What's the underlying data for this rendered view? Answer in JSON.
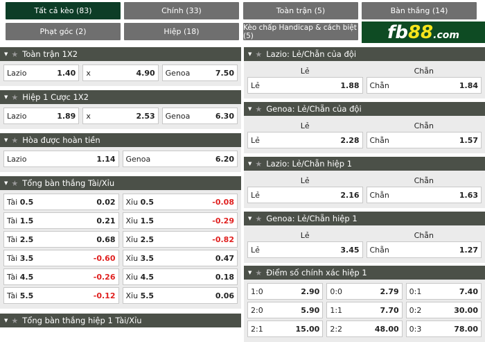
{
  "tabs": [
    {
      "label": "Tất cả kèo (83)",
      "active": true
    },
    {
      "label": "Chính (33)"
    },
    {
      "label": "Toàn trận (5)"
    },
    {
      "label": "Bàn thắng (14)"
    },
    {
      "label": "Phạt góc (2)"
    },
    {
      "label": "Hiệp (18)"
    },
    {
      "label": "Kèo chấp Handicap & cách biệt (5)"
    }
  ],
  "logo": {
    "text": "fb88.com",
    "fb": "fb",
    "num": "88",
    "dom": ".com",
    "brand_color": "#0e4b23"
  },
  "left": [
    {
      "title": "Toàn trận 1X2",
      "rows": [
        [
          {
            "l": "Lazio",
            "v": "1.40"
          },
          {
            "l": "x",
            "v": "4.90"
          },
          {
            "l": "Genoa",
            "v": "7.50"
          }
        ]
      ]
    },
    {
      "title": "Hiệp 1 Cược 1X2",
      "rows": [
        [
          {
            "l": "Lazio",
            "v": "1.89"
          },
          {
            "l": "x",
            "v": "2.53"
          },
          {
            "l": "Genoa",
            "v": "6.30"
          }
        ]
      ]
    },
    {
      "title": "Hòa được hoàn tiền",
      "rows": [
        [
          {
            "l": "Lazio",
            "v": "1.14"
          },
          {
            "l": "Genoa",
            "v": "6.20"
          }
        ]
      ]
    },
    {
      "title": "Tổng bàn thắng Tài/Xỉu",
      "rows": [
        [
          {
            "l": "Tài",
            "b": "0.5",
            "v": "0.02"
          },
          {
            "l": "Xỉu",
            "b": "0.5",
            "v": "-0.08"
          }
        ],
        [
          {
            "l": "Tài",
            "b": "1.5",
            "v": "0.21"
          },
          {
            "l": "Xỉu",
            "b": "1.5",
            "v": "-0.29"
          }
        ],
        [
          {
            "l": "Tài",
            "b": "2.5",
            "v": "0.68"
          },
          {
            "l": "Xỉu",
            "b": "2.5",
            "v": "-0.82"
          }
        ],
        [
          {
            "l": "Tài",
            "b": "3.5",
            "v": "-0.60"
          },
          {
            "l": "Xỉu",
            "b": "3.5",
            "v": "0.47"
          }
        ],
        [
          {
            "l": "Tài",
            "b": "4.5",
            "v": "-0.26"
          },
          {
            "l": "Xỉu",
            "b": "4.5",
            "v": "0.18"
          }
        ],
        [
          {
            "l": "Tài",
            "b": "5.5",
            "v": "-0.12"
          },
          {
            "l": "Xỉu",
            "b": "5.5",
            "v": "0.06"
          }
        ]
      ]
    },
    {
      "title": "Tổng bàn thắng hiệp 1 Tài/Xỉu",
      "rows": []
    }
  ],
  "right": [
    {
      "title": "Lazio: Lẻ/Chẵn của đội",
      "labels": [
        "Lẻ",
        "Chẵn"
      ],
      "rows": [
        [
          {
            "l": "Lẻ",
            "v": "1.88"
          },
          {
            "l": "Chẵn",
            "v": "1.84"
          }
        ]
      ]
    },
    {
      "title": "Genoa: Lẻ/Chẵn của đội",
      "labels": [
        "Lẻ",
        "Chẵn"
      ],
      "rows": [
        [
          {
            "l": "Lẻ",
            "v": "2.28"
          },
          {
            "l": "Chẵn",
            "v": "1.57"
          }
        ]
      ]
    },
    {
      "title": "Lazio: Lẻ/Chẵn hiệp 1",
      "labels": [
        "Lẻ",
        "Chẵn"
      ],
      "rows": [
        [
          {
            "l": "Lẻ",
            "v": "2.16"
          },
          {
            "l": "Chẵn",
            "v": "1.63"
          }
        ]
      ]
    },
    {
      "title": "Genoa: Lẻ/Chẵn hiệp 1",
      "labels": [
        "Lẻ",
        "Chẵn"
      ],
      "rows": [
        [
          {
            "l": "Lẻ",
            "v": "3.45"
          },
          {
            "l": "Chẵn",
            "v": "1.27"
          }
        ]
      ]
    },
    {
      "title": "Điểm số chính xác hiệp 1",
      "rows": [
        [
          {
            "l": "1:0",
            "v": "2.90"
          },
          {
            "l": "0:0",
            "v": "2.79"
          },
          {
            "l": "0:1",
            "v": "7.40"
          }
        ],
        [
          {
            "l": "2:0",
            "v": "5.90"
          },
          {
            "l": "1:1",
            "v": "7.70"
          },
          {
            "l": "0:2",
            "v": "30.00"
          }
        ],
        [
          {
            "l": "2:1",
            "v": "15.00"
          },
          {
            "l": "2:2",
            "v": "48.00"
          },
          {
            "l": "0:3",
            "v": "78.00"
          }
        ]
      ]
    }
  ],
  "colors": {
    "header": "#4b5048",
    "active_tab": "#0d3d27",
    "tab": "#6f6f6f",
    "negative": "#e0201f"
  }
}
